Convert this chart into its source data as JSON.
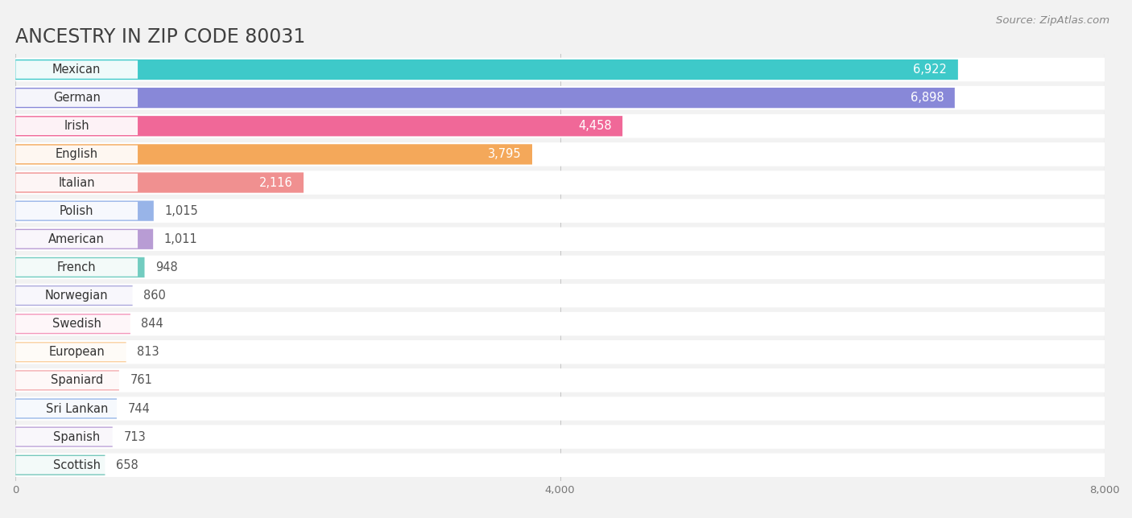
{
  "title": "ANCESTRY IN ZIP CODE 80031",
  "source": "Source: ZipAtlas.com",
  "categories": [
    "Mexican",
    "German",
    "Irish",
    "English",
    "Italian",
    "Polish",
    "American",
    "French",
    "Norwegian",
    "Swedish",
    "European",
    "Spaniard",
    "Sri Lankan",
    "Spanish",
    "Scottish"
  ],
  "values": [
    6922,
    6898,
    4458,
    3795,
    2116,
    1015,
    1011,
    948,
    860,
    844,
    813,
    761,
    744,
    713,
    658
  ],
  "colors": [
    "#3ec9c9",
    "#8888d8",
    "#f06898",
    "#f4a85a",
    "#f09090",
    "#98b4e8",
    "#b89cd4",
    "#72ccc0",
    "#aca8dc",
    "#f498bc",
    "#fad0a0",
    "#f4acb0",
    "#98b8e8",
    "#bca4d8",
    "#78c8bc"
  ],
  "bar_height": 0.72,
  "xlim": [
    0,
    8000
  ],
  "xticks": [
    0,
    4000,
    8000
  ],
  "background_color": "#f2f2f2",
  "bar_bg_color": "#ffffff",
  "title_fontsize": 17,
  "label_fontsize": 10.5,
  "value_fontsize": 10.5,
  "source_fontsize": 9.5
}
